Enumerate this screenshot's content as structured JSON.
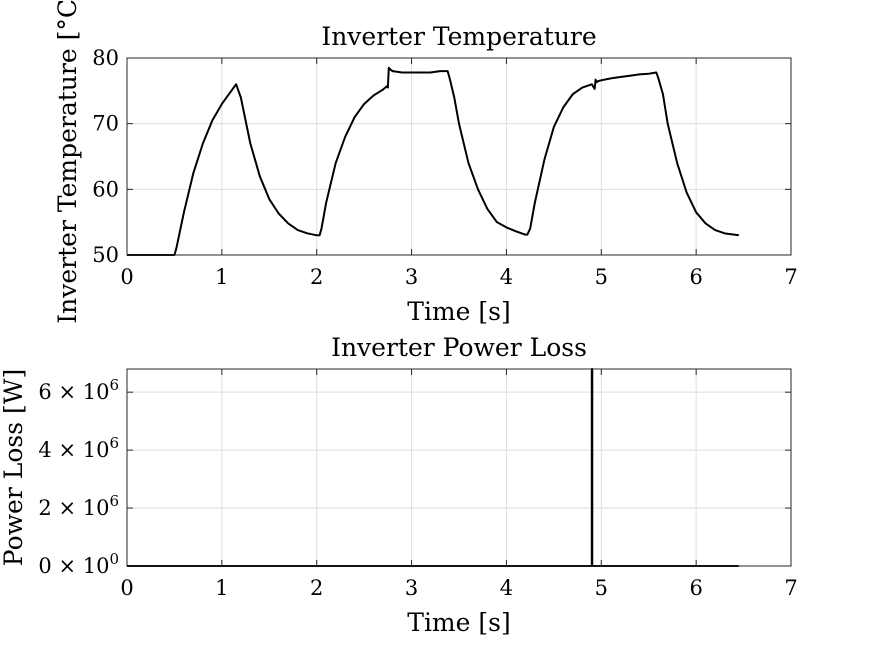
{
  "chart_data": [
    {
      "type": "line",
      "title": "Inverter Temperature",
      "xlabel": "Time [s]",
      "ylabel": "Inverter Temperature [°C]",
      "xlim": [
        0,
        7
      ],
      "ylim": [
        50,
        80
      ],
      "xticks": [
        0,
        1,
        2,
        3,
        4,
        5,
        6,
        7
      ],
      "xtick_labels": [
        "0",
        "1",
        "2",
        "3",
        "4",
        "5",
        "6",
        "7"
      ],
      "yticks": [
        50,
        60,
        70,
        80
      ],
      "ytick_labels": [
        "50",
        "60",
        "70",
        "80"
      ],
      "grid": true,
      "series": [
        {
          "color": "#000000",
          "x": [
            0,
            0.5,
            0.52,
            0.6,
            0.7,
            0.8,
            0.9,
            1.0,
            1.1,
            1.15,
            1.2,
            1.3,
            1.4,
            1.5,
            1.6,
            1.7,
            1.8,
            1.9,
            2.0,
            2.03,
            2.05,
            2.1,
            2.2,
            2.3,
            2.4,
            2.5,
            2.6,
            2.7,
            2.74,
            2.75,
            2.76,
            2.78,
            2.8,
            2.9,
            3.0,
            3.1,
            3.2,
            3.3,
            3.38,
            3.4,
            3.45,
            3.5,
            3.6,
            3.7,
            3.8,
            3.9,
            4.0,
            4.1,
            4.2,
            4.22,
            4.25,
            4.3,
            4.4,
            4.5,
            4.6,
            4.7,
            4.8,
            4.9,
            4.93,
            4.94,
            4.95,
            4.97,
            5.0,
            5.1,
            5.2,
            5.3,
            5.4,
            5.5,
            5.58,
            5.6,
            5.65,
            5.7,
            5.8,
            5.9,
            6.0,
            6.1,
            6.2,
            6.3,
            6.45
          ],
          "y": [
            50,
            50,
            51,
            56.5,
            62.5,
            67,
            70.5,
            73,
            75,
            76,
            74,
            67,
            62,
            58.5,
            56.3,
            54.8,
            53.8,
            53.3,
            53,
            53,
            54,
            58,
            64,
            68,
            71,
            73,
            74.3,
            75.2,
            75.7,
            75.5,
            78.5,
            78.2,
            78,
            77.8,
            77.8,
            77.8,
            77.8,
            78,
            78,
            77,
            74,
            70,
            64,
            60,
            57,
            55,
            54.2,
            53.6,
            53.1,
            53.1,
            54,
            58,
            64.5,
            69.5,
            72.5,
            74.5,
            75.5,
            76,
            75.3,
            76.7,
            76.3,
            76.5,
            76.6,
            76.9,
            77.1,
            77.3,
            77.5,
            77.6,
            77.8,
            77,
            74.5,
            70,
            64,
            59.5,
            56.5,
            54.8,
            53.8,
            53.3,
            53
          ]
        }
      ]
    },
    {
      "type": "line",
      "title": "Inverter Power Loss",
      "xlabel": "Time [s]",
      "ylabel": "Power Loss [W]",
      "xlim": [
        0,
        7
      ],
      "ylim": [
        0,
        6800000
      ],
      "xticks": [
        0,
        1,
        2,
        3,
        4,
        5,
        6,
        7
      ],
      "xtick_labels": [
        "0",
        "1",
        "2",
        "3",
        "4",
        "5",
        "6",
        "7"
      ],
      "yticks": [
        0,
        2000000,
        4000000,
        6000000
      ],
      "ytick_labels": [
        {
          "mantissa": "0",
          "exponent": "0"
        },
        {
          "mantissa": "2",
          "exponent": "6"
        },
        {
          "mantissa": "4",
          "exponent": "6"
        },
        {
          "mantissa": "6",
          "exponent": "6"
        }
      ],
      "grid": true,
      "series": [
        {
          "color": "#000000",
          "x": [
            0,
            4.9,
            4.9,
            4.905,
            4.905,
            6.45
          ],
          "y": [
            0,
            0,
            6800000,
            6800000,
            0,
            0
          ]
        }
      ]
    }
  ]
}
